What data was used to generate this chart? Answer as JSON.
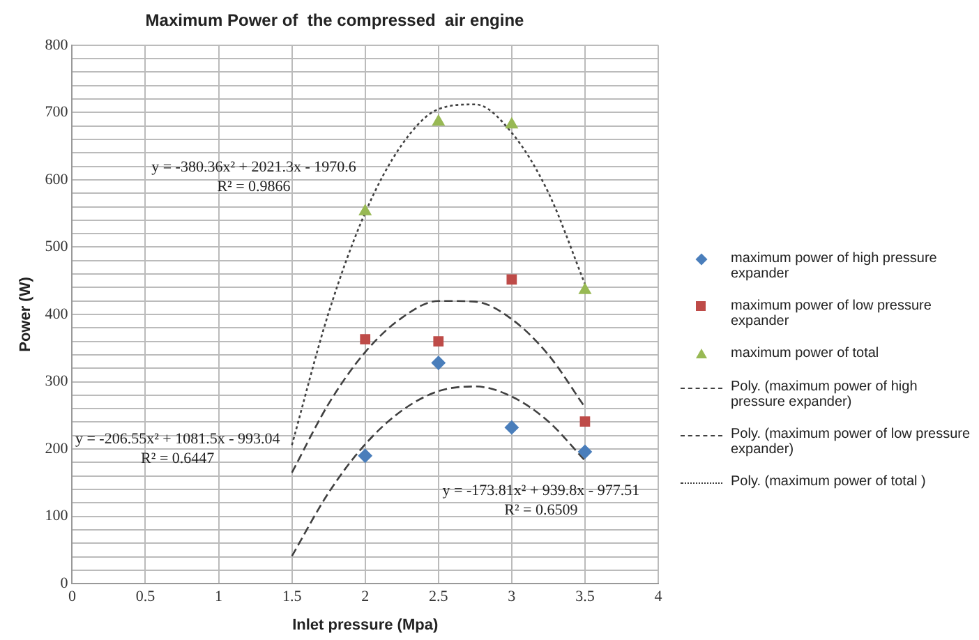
{
  "chart_data": {
    "type": "scatter",
    "title": "Maximum Power of  the compressed  air engine",
    "xlabel": "Inlet pressure (Mpa)",
    "ylabel": "Power (W)",
    "xlim": [
      0,
      4
    ],
    "xticks": [
      0,
      0.5,
      1,
      1.5,
      2,
      2.5,
      3,
      3.5,
      4
    ],
    "ylim": [
      0,
      800
    ],
    "yticks": [
      0,
      {
        "value": 20,
        "label": null
      },
      {
        "value": 40,
        "label": null
      },
      {
        "value": 60,
        "label": null
      },
      {
        "value": 80,
        "label": null
      },
      100,
      {
        "value": 120,
        "label": null
      },
      {
        "value": 140,
        "label": null
      },
      {
        "value": 160,
        "label": null
      },
      {
        "value": 180,
        "label": null
      },
      200,
      {
        "value": 220,
        "label": null
      },
      {
        "value": 240,
        "label": null
      },
      {
        "value": 260,
        "label": null
      },
      {
        "value": 280,
        "label": null
      },
      300,
      {
        "value": 320,
        "label": null
      },
      {
        "value": 340,
        "label": null
      },
      {
        "value": 360,
        "label": null
      },
      {
        "value": 380,
        "label": null
      },
      400,
      {
        "value": 420,
        "label": null
      },
      {
        "value": 440,
        "label": null
      },
      {
        "value": 460,
        "label": null
      },
      {
        "value": 480,
        "label": null
      },
      500,
      {
        "value": 520,
        "label": null
      },
      {
        "value": 540,
        "label": null
      },
      {
        "value": 560,
        "label": null
      },
      {
        "value": 580,
        "label": null
      },
      600,
      {
        "value": 620,
        "label": null
      },
      {
        "value": 640,
        "label": null
      },
      {
        "value": 660,
        "label": null
      },
      {
        "value": 680,
        "label": null
      },
      700,
      {
        "value": 720,
        "label": null
      },
      {
        "value": 740,
        "label": null
      },
      {
        "value": 760,
        "label": null
      },
      {
        "value": 780,
        "label": null
      },
      800
    ],
    "grid": true,
    "legend": "right",
    "series": [
      {
        "name": "maximum power of high pressure expander",
        "type": "scatter",
        "marker": "diamond",
        "color": "#4a7ebb",
        "x": [
          2,
          2.5,
          3,
          3.5
        ],
        "values": [
          190,
          328,
          232,
          196
        ]
      },
      {
        "name": "maximum power of low pressure expander",
        "type": "scatter",
        "marker": "square",
        "color": "#be4b48",
        "x": [
          2,
          2.5,
          3,
          3.5
        ],
        "values": [
          363,
          360,
          452,
          241
        ]
      },
      {
        "name": "maximum power of total",
        "type": "scatter",
        "marker": "triangle",
        "color": "#98b954",
        "x": [
          2,
          2.5,
          3,
          3.5
        ],
        "values": [
          553,
          686,
          682,
          436
        ]
      },
      {
        "name": "Poly. (maximum power of high pressure expander)",
        "type": "line",
        "marker": "none",
        "line_style": "dashed",
        "color": "#404040",
        "x": [
          1.5,
          1.75,
          2,
          2.25,
          2.5,
          2.75,
          3,
          3.25,
          3.5
        ],
        "values": [
          41,
          135,
          207,
          257,
          286,
          293,
          278,
          241,
          183
        ]
      },
      {
        "name": "Poly. (maximum power of low pressure expander)",
        "type": "line",
        "marker": "none",
        "line_style": "dashed",
        "color": "#404040",
        "x": [
          1.5,
          1.75,
          2,
          2.25,
          2.5,
          2.75,
          3,
          3.25,
          3.5
        ],
        "values": [
          165,
          267,
          344,
          395,
          420,
          419,
          393,
          340,
          262
        ]
      },
      {
        "name": "Poly. (maximum power of total )",
        "type": "line",
        "marker": "none",
        "line_style": "dotted",
        "color": "#404040",
        "x": [
          1.5,
          1.75,
          2,
          2.25,
          2.5,
          2.75,
          3,
          3.25,
          3.5
        ],
        "values": [
          206,
          402,
          551,
          652,
          705,
          712,
          670,
          581,
          445
        ]
      }
    ],
    "annotations": [
      "y = -380.36x² + 2021.3x - 1970.6\nR² = 0.9866",
      "y = -206.55x² + 1081.5x - 993.04\nR² = 0.6447",
      "y = -173.81x² + 939.8x - 977.51\nR² = 0.6509"
    ]
  }
}
